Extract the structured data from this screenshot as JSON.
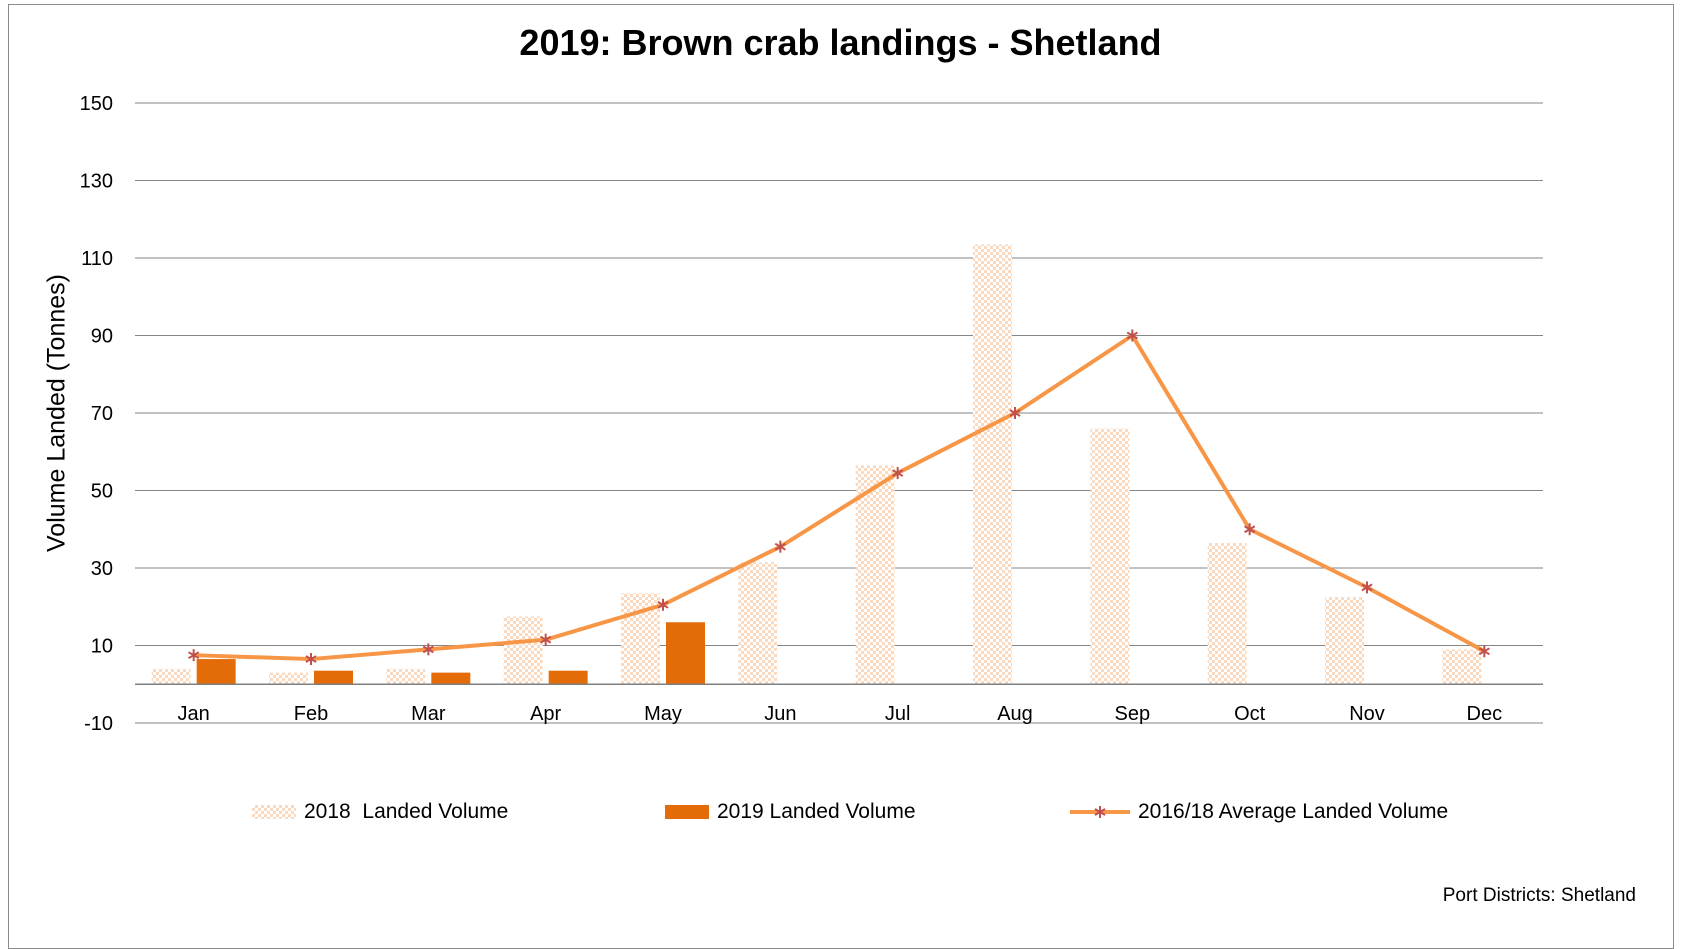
{
  "chart_data": {
    "type": "bar",
    "title": "2019: Brown crab landings - Shetland",
    "ylabel": "Volume Landed (Tonnes)",
    "xlabel": "",
    "ylim": [
      -10,
      150
    ],
    "yticks": [
      150,
      130,
      110,
      90,
      70,
      50,
      30,
      10,
      -10
    ],
    "categories": [
      "Jan",
      "Feb",
      "Mar",
      "Apr",
      "May",
      "Jun",
      "Jul",
      "Aug",
      "Sep",
      "Oct",
      "Nov",
      "Dec"
    ],
    "series": [
      {
        "name": "2018  Landed Volume",
        "kind": "bar",
        "style": "hatched",
        "values": [
          4,
          3,
          4,
          17.5,
          23.5,
          31.5,
          56.5,
          113.5,
          66,
          36.5,
          22.5,
          9
        ]
      },
      {
        "name": "2019 Landed Volume",
        "kind": "bar",
        "style": "solid",
        "values": [
          6.5,
          3.5,
          3,
          3.5,
          16,
          0,
          0,
          0,
          0,
          0,
          0,
          0
        ]
      },
      {
        "name": "2016/18 Average Landed Volume",
        "kind": "line",
        "marker": "asterisk",
        "values": [
          7.5,
          6.5,
          9,
          11.5,
          20.5,
          35.5,
          54.5,
          70,
          90,
          40,
          25,
          8.5
        ]
      }
    ],
    "colors": {
      "bar2018": "#fbd9bf",
      "bar2019": "#e36c09",
      "line": "#f79646",
      "marker": "#c0504d",
      "grid": "#868686"
    },
    "grid": true,
    "legend_position": "bottom"
  },
  "footer": {
    "note": "Port Districts:  Shetland"
  }
}
